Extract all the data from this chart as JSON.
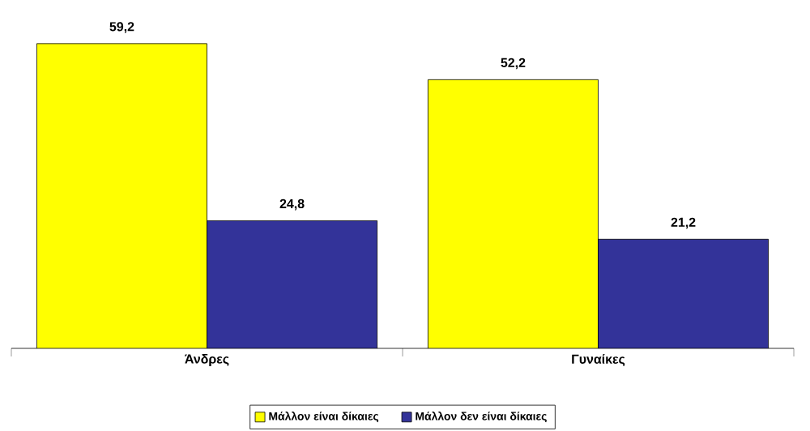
{
  "chart_data": {
    "type": "bar",
    "categories": [
      "Άνδρες",
      "Γυναίκες"
    ],
    "series": [
      {
        "name": "Μάλλον είναι δίκαιες",
        "color": "#ffff00",
        "values": [
          59.2,
          52.2
        ],
        "value_labels": [
          "59,2",
          "52,2"
        ]
      },
      {
        "name": "Μάλλον δεν είναι δίκαιες",
        "color": "#333399",
        "values": [
          24.8,
          21.2
        ],
        "value_labels": [
          "24,8",
          "21,2"
        ]
      }
    ],
    "legend": "bottom"
  }
}
